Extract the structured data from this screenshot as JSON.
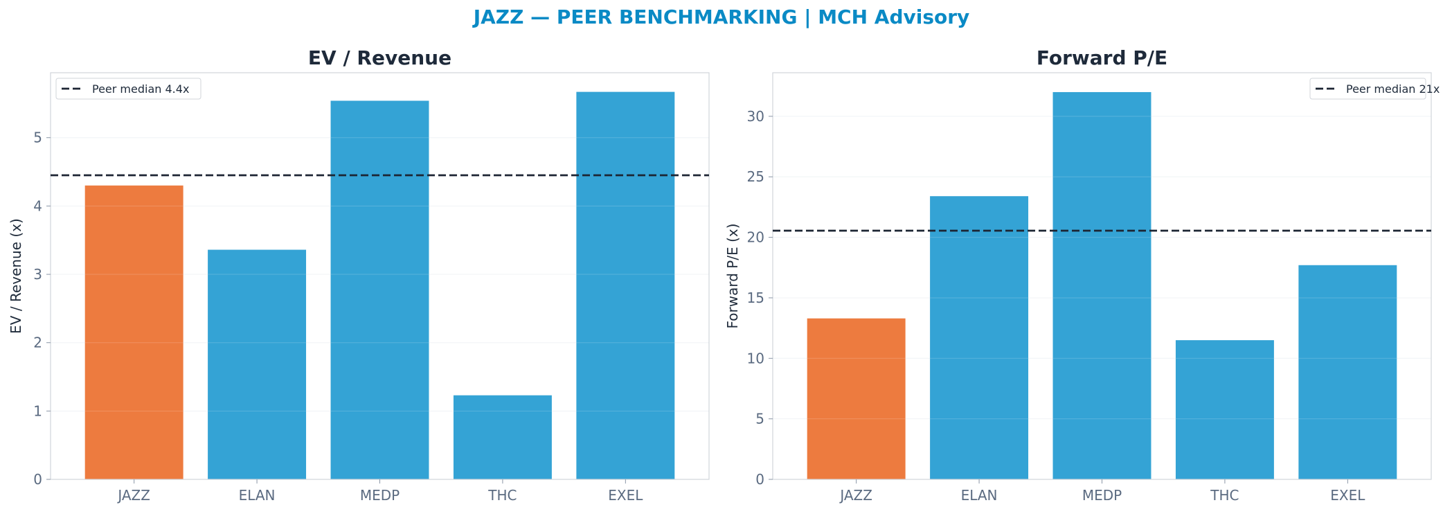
{
  "suptitle": "JAZZ — PEER BENCHMARKING | MCH Advisory",
  "colors": {
    "highlight": "#ed7b3f",
    "peer": "#34a3d5",
    "median_line": "#1c2533",
    "spine": "#d0d4da",
    "grid": "#eef1f4"
  },
  "chart_data": [
    {
      "type": "bar",
      "title": "EV / Revenue",
      "ylabel": "EV / Revenue (x)",
      "categories": [
        "JAZZ",
        "ELAN",
        "MEDP",
        "THC",
        "EXEL"
      ],
      "values": [
        4.3,
        3.36,
        5.54,
        1.23,
        5.67
      ],
      "highlight": "JAZZ",
      "ylim": [
        0,
        5.95
      ],
      "yticks": [
        0,
        1,
        2,
        3,
        4,
        5
      ],
      "reference_line": {
        "label": "Peer median 4.4x",
        "value": 4.45,
        "style": "dashed"
      },
      "legend_position": "top-left",
      "grid": "horizontal"
    },
    {
      "type": "bar",
      "title": "Forward P/E",
      "ylabel": "Forward P/E (x)",
      "categories": [
        "JAZZ",
        "ELAN",
        "MEDP",
        "THC",
        "EXEL"
      ],
      "values": [
        13.3,
        23.4,
        32.0,
        11.5,
        17.7
      ],
      "highlight": "JAZZ",
      "ylim": [
        0,
        33.6
      ],
      "yticks": [
        0,
        5,
        10,
        15,
        20,
        25,
        30
      ],
      "reference_line": {
        "label": "Peer median 21x",
        "value": 20.55,
        "style": "dashed"
      },
      "legend_position": "top-right",
      "grid": "horizontal"
    }
  ]
}
